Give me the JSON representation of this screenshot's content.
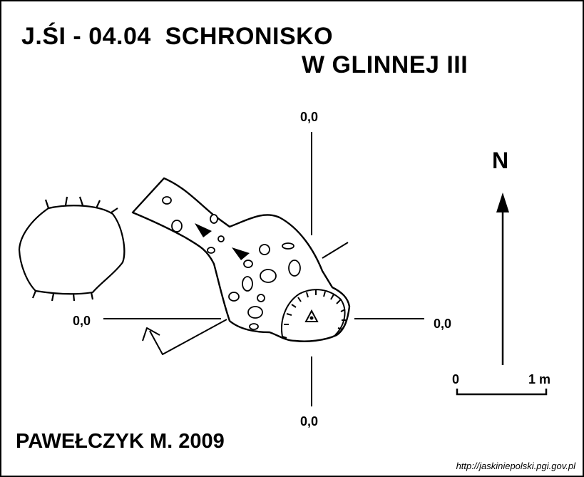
{
  "title": {
    "line1": "J.ŚI - 04.04  SCHRONISKO",
    "line2": "W GLINNEJ III"
  },
  "datum_labels": {
    "top": "0,0",
    "left": "0,0",
    "right": "0,0",
    "bottom": "0,0"
  },
  "north_label": "N",
  "scale": {
    "start": "0",
    "end": "1 m"
  },
  "author": "PAWEŁCZYK M. 2009",
  "source_url": "http://jaskiniepolski.pgi.gov.pl"
}
